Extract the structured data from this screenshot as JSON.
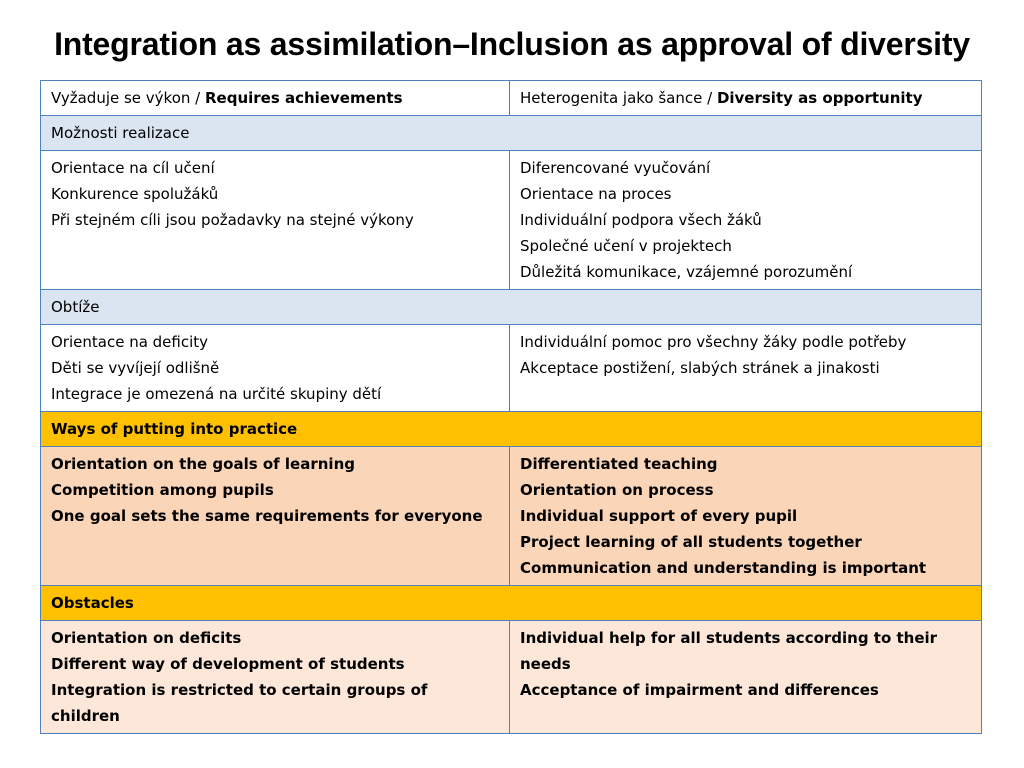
{
  "title": "Integration as assimilation–Inclusion as approval of diversity",
  "header": {
    "left_plain": "Vyžaduje se výkon / ",
    "left_bold": "Requires achievements",
    "right_plain": "Heterogenita jako šance / ",
    "right_bold": "Diversity as opportunity"
  },
  "section1": {
    "label": "Možnosti realizace",
    "left": [
      "Orientace na cíl učení",
      "Konkurence spolužáků",
      "Při stejném cíli jsou požadavky na stejné výkony"
    ],
    "right": [
      "Diferencované vyučování",
      "Orientace na proces",
      "Individuální podpora všech žáků",
      "Společné učení v projektech",
      "Důležitá komunikace, vzájemné porozumění"
    ]
  },
  "section2": {
    "label": "Obtíže",
    "left": [
      "Orientace na deficity",
      "Děti se vyvíjejí odlišně",
      "Integrace je omezená na určité skupiny dětí"
    ],
    "right": [
      "Individuální pomoc pro všechny žáky podle potřeby",
      "Akceptace postižení, slabých stránek a jinakosti"
    ]
  },
  "section3": {
    "label": "Ways of putting into practice",
    "left": [
      "Orientation on the goals of learning",
      "Competition among pupils",
      "One goal sets the same requirements for everyone"
    ],
    "right": [
      "Differentiated teaching",
      "Orientation on process",
      "Individual support of every pupil",
      "Project learning of all students together",
      "Communication and understanding is important"
    ]
  },
  "section4": {
    "label": "Obstacles",
    "left": [
      "Orientation on deficits",
      "Different way of development of students",
      "Integration is restricted to certain groups of children"
    ],
    "right": [
      "Individual help for all students according to their needs",
      "Acceptance of impairment and differences"
    ]
  },
  "colors": {
    "border": "#4f81bd",
    "section_blue": "#dbe5f1",
    "section_yellow": "#ffc000",
    "content_orange": "#fad5b8",
    "content_peach": "#fce7d9"
  }
}
